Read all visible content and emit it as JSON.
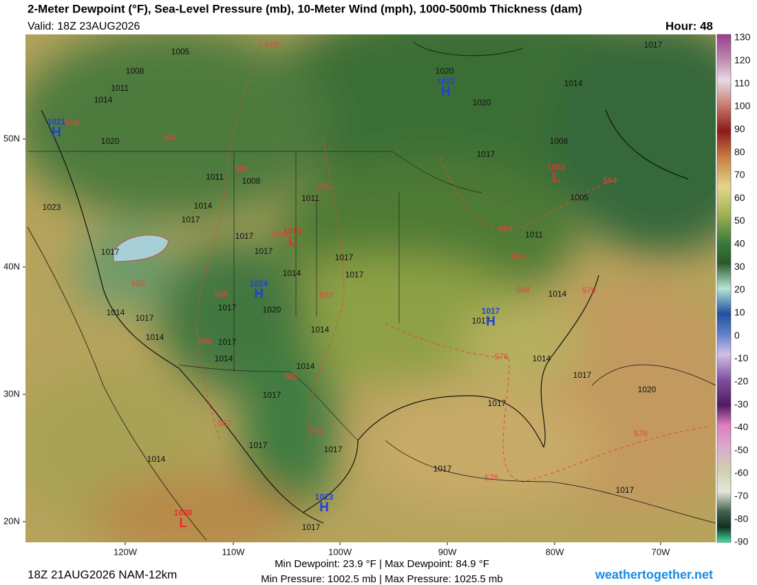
{
  "header": {
    "title": "2-Meter Dewpoint (°F), Sea-Level Pressure (mb), 10-Meter Wind (mph), 1000-500mb Thickness (dam)",
    "valid": "Valid: 18Z 23AUG2026",
    "hour": "Hour: 48"
  },
  "colorbar": {
    "ticks": [
      130,
      120,
      110,
      100,
      90,
      80,
      70,
      60,
      50,
      40,
      30,
      20,
      10,
      0,
      -10,
      -20,
      -30,
      -40,
      -50,
      -60,
      -70,
      -80,
      -90
    ]
  },
  "lat_labels": [
    "50N",
    "40N",
    "30N",
    "20N"
  ],
  "lon_labels": [
    "120W",
    "110W",
    "100W",
    "90W",
    "80W",
    "70W"
  ],
  "pressure_labels": [
    1005,
    1008,
    1011,
    1014,
    1020,
    1023,
    1017,
    1014,
    1017,
    1014,
    1020,
    1020,
    1017,
    1014,
    1008,
    1005,
    1008,
    1011,
    1014,
    1017,
    1017,
    1017,
    1014,
    1017,
    1017,
    1017,
    1020,
    1017,
    1014,
    1014,
    1014,
    1017,
    1017,
    1014,
    1014,
    1017,
    1020,
    1017,
    1017,
    1017,
    1017,
    1017,
    1014,
    1017,
    1017,
    1011,
    1011
  ],
  "thickness_labels": [
    570,
    564,
    558,
    582,
    576,
    588,
    582,
    588,
    582,
    588,
    588,
    582,
    582,
    576,
    576,
    576,
    564,
    558,
    552,
    564,
    570
  ],
  "highs": [
    {
      "value": 1021,
      "symbol": "H"
    },
    {
      "value": 1022,
      "symbol": "H"
    },
    {
      "value": 1024,
      "symbol": "H"
    },
    {
      "value": 1017,
      "symbol": "H"
    },
    {
      "value": 1023,
      "symbol": "H"
    }
  ],
  "lows": [
    {
      "value": 1010,
      "symbol": "L"
    },
    {
      "value": 1002,
      "symbol": "L"
    },
    {
      "value": 1008,
      "symbol": "L"
    }
  ],
  "footer": {
    "run": "18Z 21AUG2026 NAM-12km",
    "dewpoint": "Min Dewpoint:  23.9 °F | Max Dewpoint:  84.9 °F",
    "pressure": "Min Pressure: 1002.5 mb | Max Pressure: 1025.5 mb",
    "site": "weathertogether.net"
  }
}
